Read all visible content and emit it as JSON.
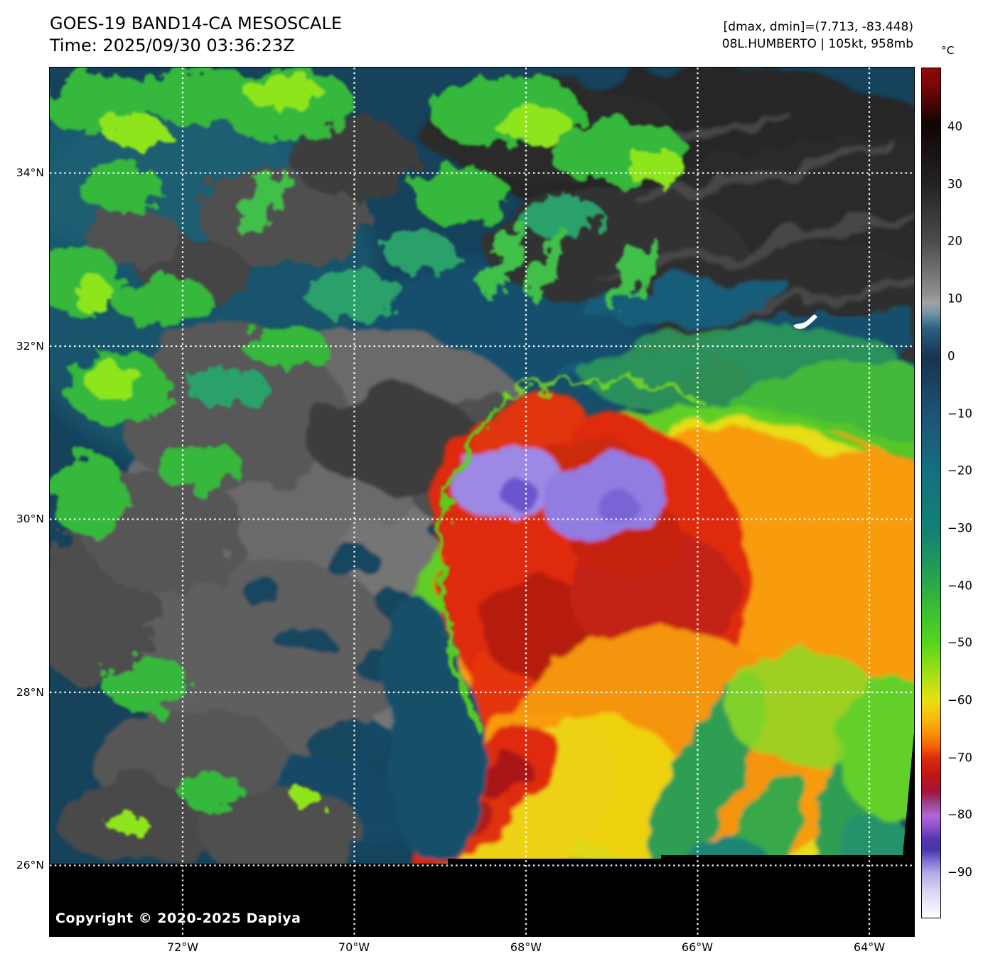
{
  "header": {
    "title": "GOES-19 BAND14-CA MESOSCALE",
    "time": "Time: 2025/09/30 03:36:23Z",
    "range_info": "[dmax, dmin]=(7.713, -83.448)",
    "storm_info": "08L.HUMBERTO | 105kt, 958mb"
  },
  "map": {
    "lat_labels": [
      "34°N",
      "32°N",
      "30°N",
      "28°N",
      "26°N"
    ],
    "lon_labels": [
      "72°W",
      "70°W",
      "68°W",
      "66°W",
      "64°W"
    ],
    "copyright": "Copyright © 2020-2025 Dapiya",
    "grid_color": "#ffffff"
  },
  "colorbar": {
    "unit": "°C",
    "ticks": [
      "40",
      "30",
      "20",
      "10",
      "0",
      "−10",
      "−20",
      "−30",
      "−40",
      "−50",
      "−60",
      "−70",
      "−80",
      "−90"
    ],
    "gradient": [
      {
        "at": 0.0,
        "color": "#8F0A0A"
      },
      {
        "at": 0.02,
        "color": "#7A0707"
      },
      {
        "at": 0.065,
        "color": "#120404"
      },
      {
        "at": 0.138,
        "color": "#232323"
      },
      {
        "at": 0.205,
        "color": "#4D4D4D"
      },
      {
        "at": 0.266,
        "color": "#8F8F8F"
      },
      {
        "at": 0.276,
        "color": "#9FA3A6"
      },
      {
        "at": 0.29,
        "color": "#6E8FA4"
      },
      {
        "at": 0.307,
        "color": "#2B5E80"
      },
      {
        "at": 0.34,
        "color": "#17344F"
      },
      {
        "at": 0.408,
        "color": "#1E5374"
      },
      {
        "at": 0.475,
        "color": "#147081"
      },
      {
        "at": 0.542,
        "color": "#128073"
      },
      {
        "at": 0.576,
        "color": "#1B9560"
      },
      {
        "at": 0.61,
        "color": "#2BAB46"
      },
      {
        "at": 0.644,
        "color": "#3FC32E"
      },
      {
        "at": 0.677,
        "color": "#57D51B"
      },
      {
        "at": 0.71,
        "color": "#9DDF13"
      },
      {
        "at": 0.744,
        "color": "#E6E112"
      },
      {
        "at": 0.765,
        "color": "#F8BB0A"
      },
      {
        "at": 0.785,
        "color": "#F88D06"
      },
      {
        "at": 0.8,
        "color": "#F25C07"
      },
      {
        "at": 0.812,
        "color": "#DE2B10"
      },
      {
        "at": 0.832,
        "color": "#C01715"
      },
      {
        "at": 0.852,
        "color": "#A3143B"
      },
      {
        "at": 0.866,
        "color": "#9A4790"
      },
      {
        "at": 0.88,
        "color": "#B266D6"
      },
      {
        "at": 0.893,
        "color": "#8A52CC"
      },
      {
        "at": 0.907,
        "color": "#5636B2"
      },
      {
        "at": 0.92,
        "color": "#4636A8"
      },
      {
        "at": 0.934,
        "color": "#7E74D2"
      },
      {
        "at": 0.947,
        "color": "#AFA9E6"
      },
      {
        "at": 0.967,
        "color": "#D6D3F2"
      },
      {
        "at": 1.0,
        "color": "#FFFFFF"
      }
    ]
  }
}
